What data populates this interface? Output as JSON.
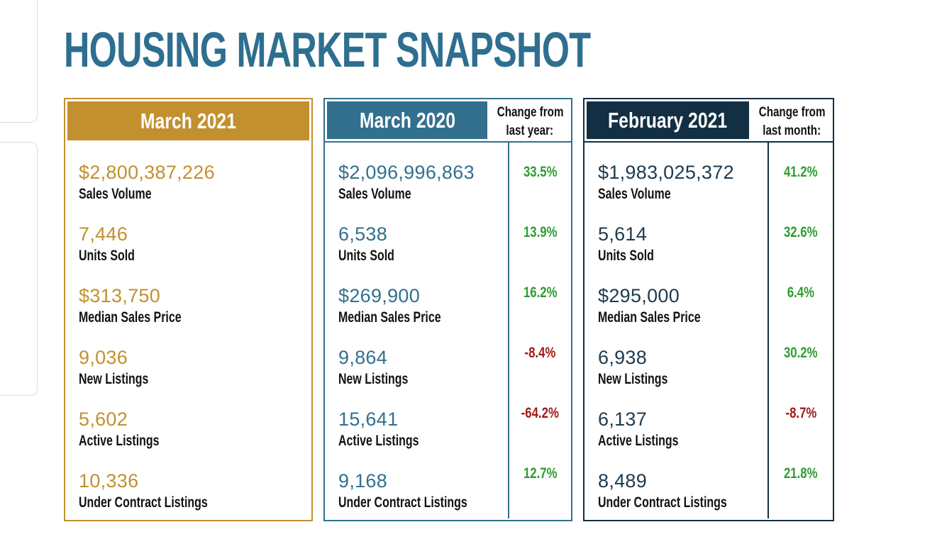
{
  "page": {
    "title": "HOUSING MARKET SNAPSHOT"
  },
  "colors": {
    "title_teal": "#2E6F90",
    "gold": "#C2902F",
    "teal": "#32708E",
    "navy": "#132F43",
    "navy_value": "#1E3A4E",
    "positive_green": "#2E9D30",
    "negative_red": "#9E1A1A",
    "label_black": "#121212",
    "panel_border": "#DDDDDD"
  },
  "metric_labels": [
    "Sales Volume",
    "Units Sold",
    "Median Sales Price",
    "New Listings",
    "Active Listings",
    "Under Contract Listings"
  ],
  "cards": [
    {
      "header": "March 2021",
      "values": [
        "$2,800,387,226",
        "7,446",
        "$313,750",
        "9,036",
        "5,602",
        "10,336"
      ]
    },
    {
      "header": "March 2020",
      "change_header": [
        "Change from",
        "last year:"
      ],
      "values": [
        "$2,096,996,863",
        "6,538",
        "$269,900",
        "9,864",
        "15,641",
        "9,168"
      ],
      "changes": [
        {
          "text": "33.5%",
          "color": "#2E9D30"
        },
        {
          "text": "13.9%",
          "color": "#2E9D30"
        },
        {
          "text": "16.2%",
          "color": "#2E9D30"
        },
        {
          "text": "-8.4%",
          "color": "#9E1A1A"
        },
        {
          "text": "-64.2%",
          "color": "#9E1A1A"
        },
        {
          "text": "12.7%",
          "color": "#2E9D30"
        }
      ]
    },
    {
      "header": "February 2021",
      "change_header": [
        "Change from",
        "last month:"
      ],
      "values": [
        "$1,983,025,372",
        "5,614",
        "$295,000",
        "6,938",
        "6,137",
        "8,489"
      ],
      "changes": [
        {
          "text": "41.2%",
          "color": "#2E9D30"
        },
        {
          "text": "32.6%",
          "color": "#2E9D30"
        },
        {
          "text": "6.4%",
          "color": "#2E9D30"
        },
        {
          "text": "30.2%",
          "color": "#2E9D30"
        },
        {
          "text": "-8.7%",
          "color": "#9E1A1A"
        },
        {
          "text": "21.8%",
          "color": "#2E9D30"
        }
      ]
    }
  ],
  "chart_data": {
    "type": "table",
    "title": "HOUSING MARKET SNAPSHOT",
    "row_labels": [
      "Sales Volume",
      "Units Sold",
      "Median Sales Price",
      "New Listings",
      "Active Listings",
      "Under Contract Listings"
    ],
    "columns": [
      {
        "label": "March 2021",
        "values": [
          "$2,800,387,226",
          "7,446",
          "$313,750",
          "9,036",
          "5,602",
          "10,336"
        ]
      },
      {
        "label": "March 2020",
        "values": [
          "$2,096,996,863",
          "6,538",
          "$269,900",
          "9,864",
          "15,641",
          "9,168"
        ],
        "change_from_last_year": [
          "33.5%",
          "13.9%",
          "16.2%",
          "-8.4%",
          "-64.2%",
          "12.7%"
        ]
      },
      {
        "label": "February 2021",
        "values": [
          "$1,983,025,372",
          "5,614",
          "$295,000",
          "6,938",
          "6,137",
          "8,489"
        ],
        "change_from_last_month": [
          "41.2%",
          "32.6%",
          "6.4%",
          "30.2%",
          "-8.7%",
          "21.8%"
        ]
      }
    ]
  }
}
